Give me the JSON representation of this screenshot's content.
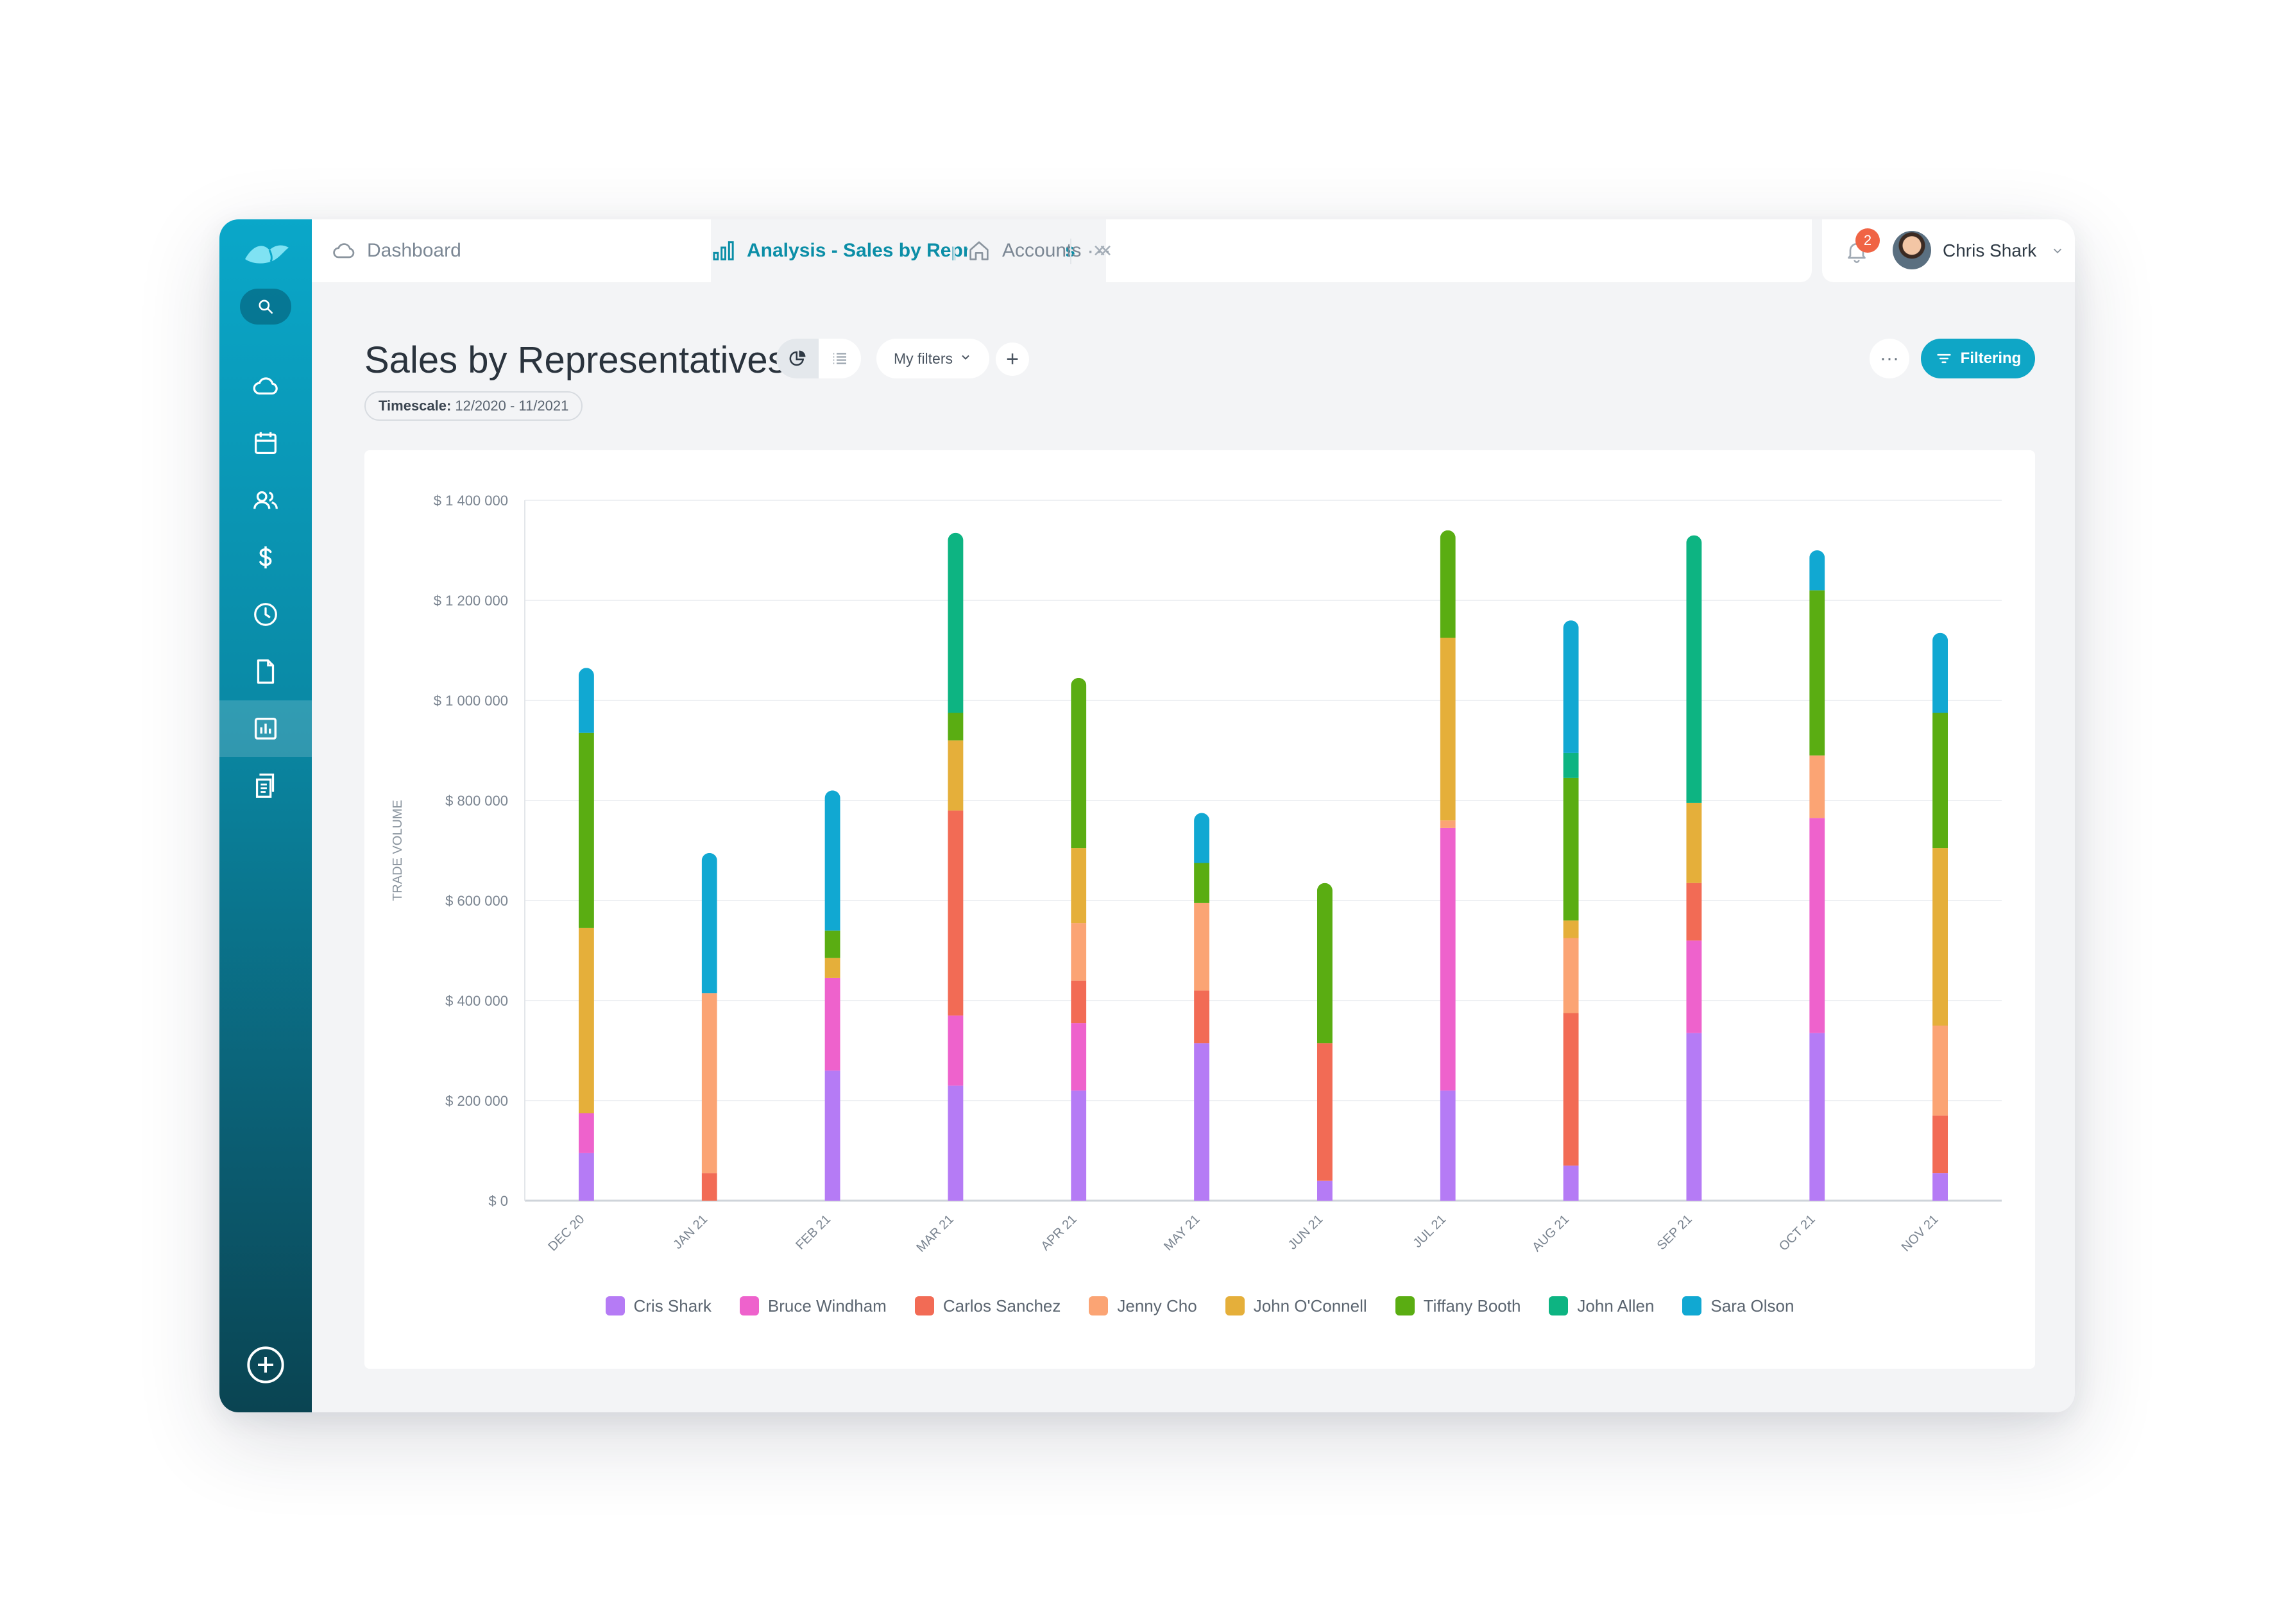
{
  "tabs": {
    "dashboard": {
      "label": "Dashboard",
      "icon": "cloud-icon"
    },
    "analysis": {
      "label": "Analysis - Sales by Representatives",
      "icon": "bar-chart-icon",
      "close": "×"
    },
    "accounts": {
      "label": "Accounts",
      "icon": "home-icon",
      "close": "×"
    },
    "more": "···"
  },
  "user": {
    "name": "Chris Shark",
    "notifications": "2"
  },
  "sidebar": {
    "items": [
      {
        "icon": "cloud-icon"
      },
      {
        "icon": "calendar-icon"
      },
      {
        "icon": "contacts-icon"
      },
      {
        "icon": "dollar-icon"
      },
      {
        "icon": "clock-icon"
      },
      {
        "icon": "document-icon"
      },
      {
        "icon": "report-icon",
        "active": true
      },
      {
        "icon": "invoice-icon"
      }
    ]
  },
  "page": {
    "title": "Sales by Representatives",
    "my_filters": "My filters",
    "add": "+",
    "timescale_label": "Timescale:",
    "timescale_value": "12/2020 - 11/2021",
    "more": "···",
    "filtering": "Filtering"
  },
  "colors": {
    "accent": "#0fa6c6",
    "badge": "#f06445"
  },
  "chart_data": {
    "type": "bar",
    "stacked": true,
    "ylabel": "TRADE VOLUME",
    "ylim": [
      0,
      1400000
    ],
    "y_ticks": [
      {
        "value": 0,
        "label": "$ 0"
      },
      {
        "value": 200000,
        "label": "$ 200 000"
      },
      {
        "value": 400000,
        "label": "$ 400 000"
      },
      {
        "value": 600000,
        "label": "$ 600 000"
      },
      {
        "value": 800000,
        "label": "$ 800 000"
      },
      {
        "value": 1000000,
        "label": "$ 1 000 000"
      },
      {
        "value": 1200000,
        "label": "$ 1 200 000"
      },
      {
        "value": 1400000,
        "label": "$ 1 400 000"
      }
    ],
    "categories": [
      "DEC 20",
      "JAN 21",
      "FEB 21",
      "MAR 21",
      "APR 21",
      "MAY 21",
      "JUN 21",
      "JUL 21",
      "AUG 21",
      "SEP 21",
      "OCT 21",
      "NOV 21"
    ],
    "series": [
      {
        "name": "Cris Shark",
        "color": "#b57bf5",
        "values": [
          95000,
          0,
          260000,
          230000,
          220000,
          315000,
          40000,
          220000,
          70000,
          335000,
          335000,
          55000
        ]
      },
      {
        "name": "Bruce Windham",
        "color": "#ee62cc",
        "values": [
          80000,
          0,
          185000,
          140000,
          135000,
          0,
          0,
          525000,
          0,
          185000,
          430000,
          0
        ]
      },
      {
        "name": "Carlos Sanchez",
        "color": "#f26b55",
        "values": [
          0,
          55000,
          0,
          410000,
          85000,
          105000,
          275000,
          0,
          305000,
          115000,
          0,
          115000
        ]
      },
      {
        "name": "Jenny Cho",
        "color": "#fba474",
        "values": [
          0,
          360000,
          0,
          0,
          115000,
          175000,
          0,
          15000,
          150000,
          0,
          125000,
          180000
        ]
      },
      {
        "name": "John O'Connell",
        "color": "#e5af3a",
        "values": [
          370000,
          0,
          40000,
          140000,
          150000,
          0,
          0,
          365000,
          35000,
          160000,
          0,
          355000
        ]
      },
      {
        "name": "Tiffany Booth",
        "color": "#5aad12",
        "values": [
          390000,
          0,
          55000,
          55000,
          340000,
          80000,
          320000,
          215000,
          285000,
          0,
          330000,
          270000
        ]
      },
      {
        "name": "John Allen",
        "color": "#0db482",
        "values": [
          0,
          0,
          0,
          360000,
          0,
          0,
          0,
          0,
          50000,
          535000,
          0,
          0
        ]
      },
      {
        "name": "Sara Olson",
        "color": "#11a8d2",
        "values": [
          130000,
          280000,
          280000,
          0,
          0,
          100000,
          0,
          0,
          265000,
          0,
          80000,
          160000
        ]
      }
    ],
    "legend_position": "bottom",
    "grid": true
  }
}
